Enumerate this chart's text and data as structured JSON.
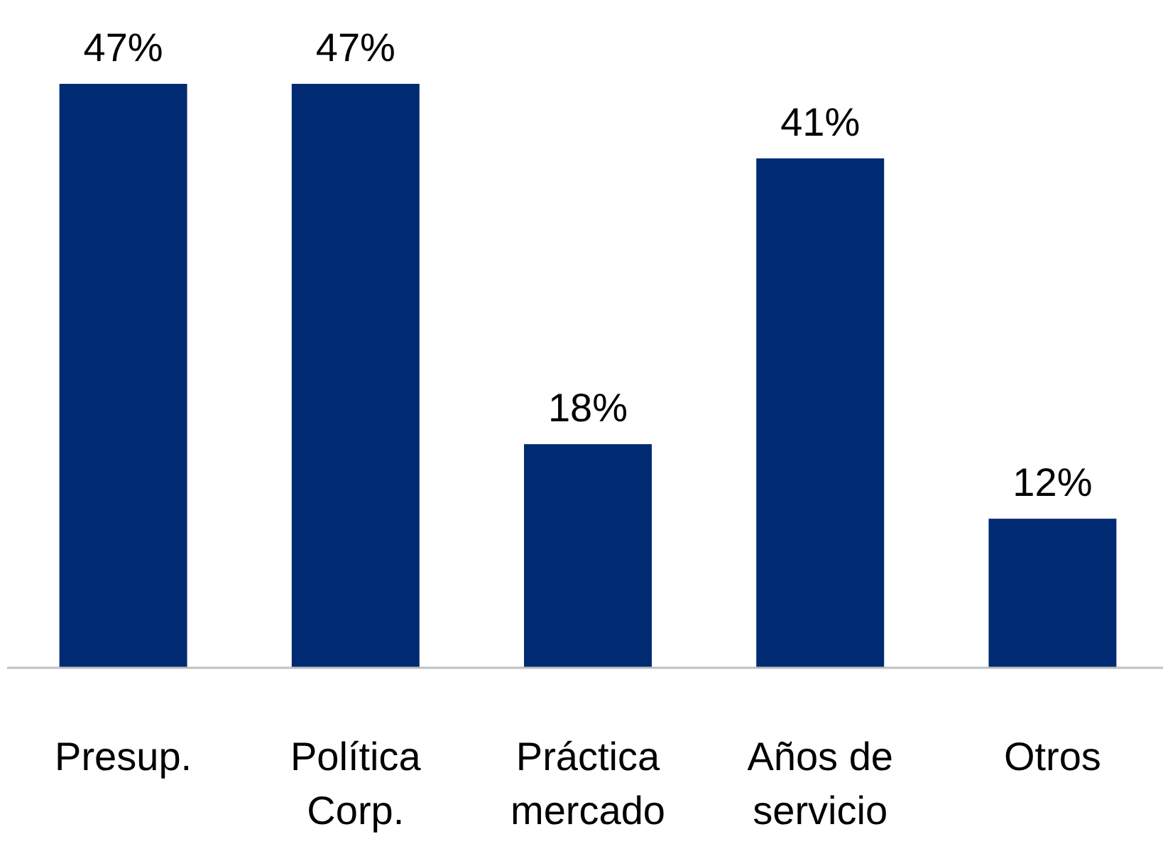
{
  "chart_data": {
    "type": "bar",
    "categories": [
      "Presup.",
      "Política Corp.",
      "Práctica mercado",
      "Años de servicio",
      "Otros"
    ],
    "values": [
      47,
      47,
      18,
      41,
      12
    ],
    "value_labels": [
      "47%",
      "47%",
      "18%",
      "41%",
      "12%"
    ],
    "color": "#002b73"
  }
}
